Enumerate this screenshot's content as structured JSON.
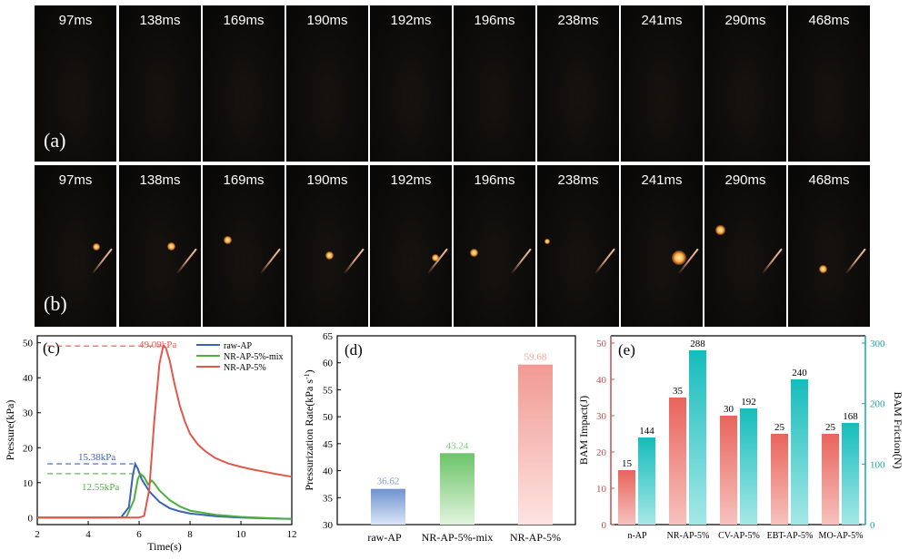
{
  "frames": {
    "times": [
      "97ms",
      "138ms",
      "169ms",
      "190ms",
      "192ms",
      "196ms",
      "238ms",
      "241ms",
      "290ms",
      "468ms"
    ],
    "row_a_label": "(a)",
    "row_b_label": "(b)"
  },
  "chart_data": [
    {
      "id": "c",
      "panel_label": "(c)",
      "type": "line",
      "xlabel": "Time(s)",
      "ylabel": "Pressure(kPa)",
      "xlim": [
        2,
        12
      ],
      "ylim": [
        -2,
        52
      ],
      "xticks": [
        "2",
        "4",
        "6",
        "8",
        "10",
        "12"
      ],
      "yticks": [
        "0",
        "10",
        "20",
        "30",
        "40",
        "50"
      ],
      "series": [
        {
          "name": "raw-AP",
          "color": "#3a62b8",
          "x": [
            2,
            4,
            5.3,
            5.6,
            5.75,
            5.85,
            5.95,
            6.1,
            6.4,
            6.8,
            7.2,
            7.6,
            8,
            9,
            10,
            11,
            12
          ],
          "y": [
            0,
            0,
            0.1,
            3,
            12,
            15.38,
            14,
            11,
            7.5,
            4.5,
            2.7,
            1.8,
            1.2,
            0.4,
            0,
            -0.2,
            -0.4
          ]
        },
        {
          "name": "NR-AP-5%-mix",
          "color": "#4caf3c",
          "x": [
            2,
            4,
            5.5,
            5.8,
            5.95,
            6.05,
            6.2,
            6.35,
            6.5,
            6.6,
            6.8,
            7.2,
            7.6,
            8,
            9,
            10,
            11,
            12
          ],
          "y": [
            0,
            0,
            0.1,
            5,
            11,
            12.55,
            11.6,
            9.5,
            10.6,
            9.8,
            7.8,
            5,
            3.2,
            2,
            0.8,
            0.2,
            -0.1,
            -0.4
          ]
        },
        {
          "name": "NR-AP-5%",
          "color": "#e0584c",
          "x": [
            2,
            4,
            6,
            6.2,
            6.4,
            6.6,
            6.8,
            6.95,
            7.05,
            7.2,
            7.4,
            7.6,
            7.8,
            8,
            8.3,
            8.6,
            9,
            9.5,
            10,
            10.5,
            11,
            11.5,
            12
          ],
          "y": [
            0,
            0,
            0,
            0.5,
            8,
            28,
            44,
            49.09,
            48.6,
            45,
            38,
            32,
            27.5,
            24,
            21,
            19,
            17,
            15.5,
            14.5,
            13.7,
            13,
            12.3,
            11.7
          ]
        }
      ],
      "annotations": [
        "49.09kPa",
        "15.38kPa",
        "12.55kPa"
      ],
      "legend": "top-right"
    },
    {
      "id": "d",
      "panel_label": "(d)",
      "type": "bar",
      "ylabel": "Pressurization Rate(kPa s",
      "ylabel_sup": "-1",
      "ylabel_end": ")",
      "ylim": [
        30,
        65
      ],
      "yticks": [
        "30",
        "35",
        "40",
        "45",
        "50",
        "55",
        "60",
        "65"
      ],
      "categories": [
        "raw-AP",
        "NR-AP-5%-mix",
        "NR-AP-5%"
      ],
      "values": [
        36.62,
        43.24,
        59.68
      ],
      "value_labels": [
        "36.62",
        "43.24",
        "59.68"
      ],
      "colors": [
        "#7e9fd4",
        "#7fcf78",
        "#f3a19a"
      ]
    },
    {
      "id": "e",
      "panel_label": "(e)",
      "type": "bar",
      "ylabel": "BAM Impact(J)",
      "ylabel_right": "BAM Friction(N)",
      "ylim": [
        0,
        52
      ],
      "ylim_right": [
        0,
        312
      ],
      "yticks": [
        "0",
        "10",
        "20",
        "30",
        "40",
        "50"
      ],
      "yticks_right": [
        "0",
        "100",
        "200",
        "300"
      ],
      "categories": [
        "n-AP",
        "NR-AP-5%",
        "CV-AP-5%",
        "EBT-AP-5%",
        "MO-AP-5%"
      ],
      "series": [
        {
          "name": "BAM Impact",
          "values": [
            15,
            35,
            30,
            25,
            25
          ],
          "labels": [
            "15",
            "35",
            "30",
            "25",
            "25"
          ],
          "color": "#e8746d"
        },
        {
          "name": "BAM Friction",
          "values": [
            144,
            288,
            192,
            240,
            168
          ],
          "labels": [
            "144",
            "288",
            "192",
            "240",
            "168"
          ],
          "color": "#2ec4c4"
        }
      ]
    }
  ]
}
